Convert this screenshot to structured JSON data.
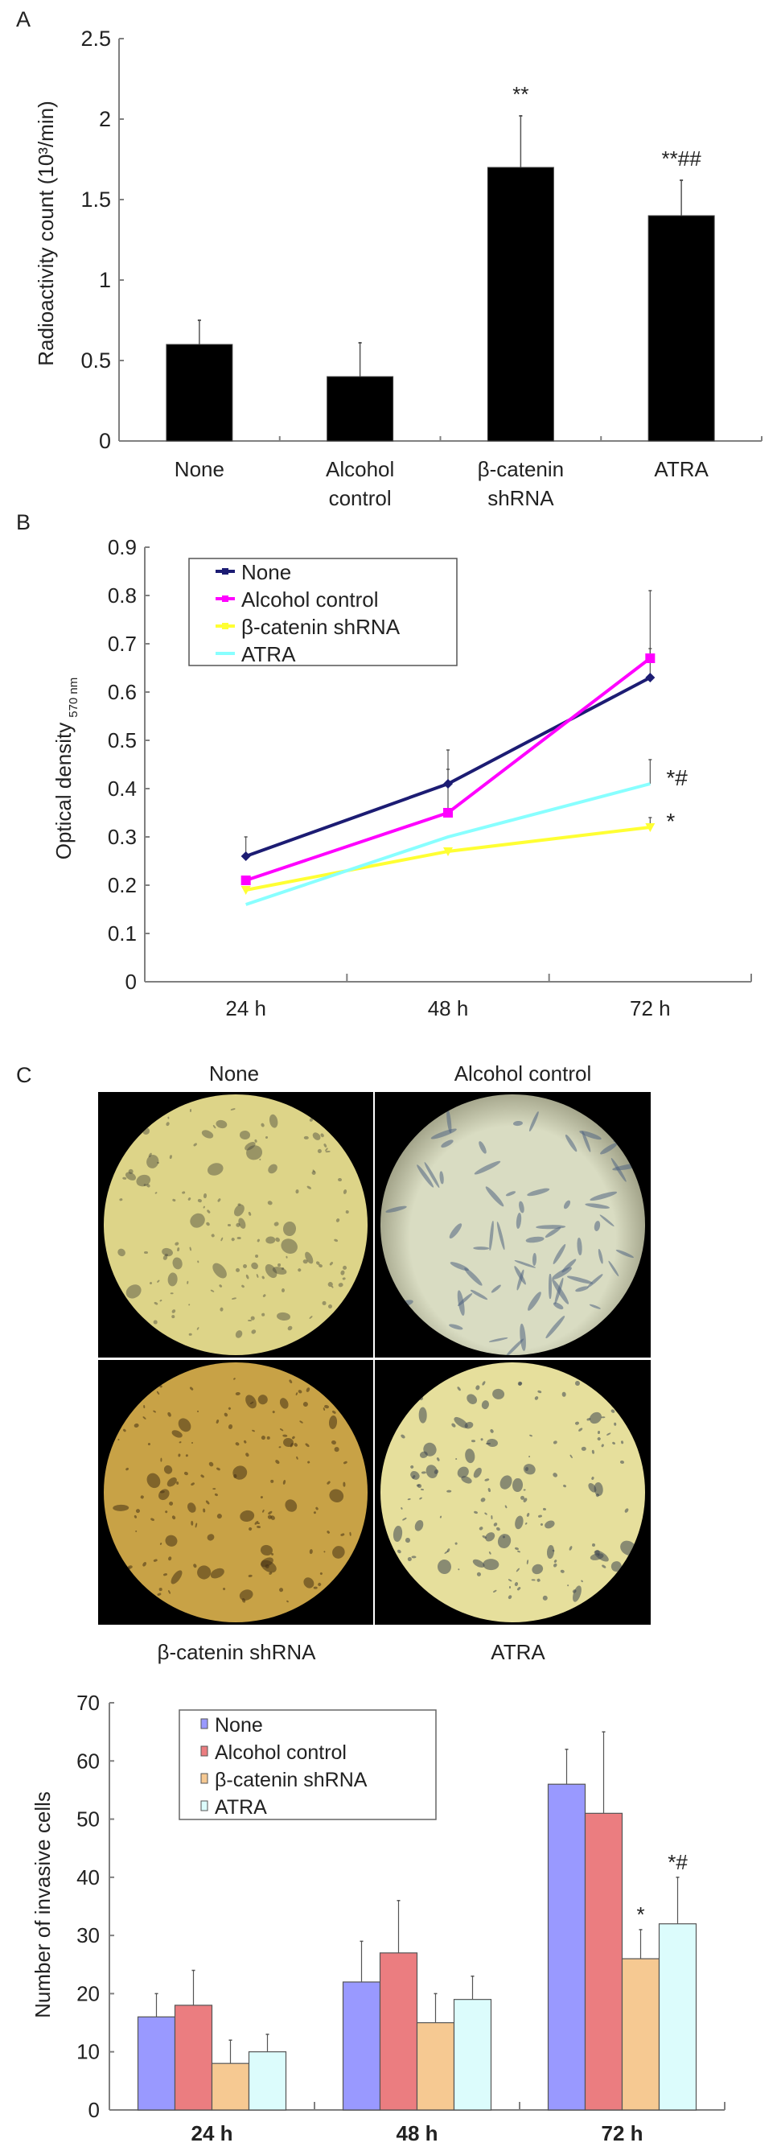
{
  "panel_labels": {
    "a": "A",
    "b": "B",
    "c": "C"
  },
  "colors": {
    "bar_a": "#000000",
    "axis": "#808080",
    "error_bar": "#555555",
    "annotation": "#555555"
  },
  "micrographs": {
    "labels": [
      "None",
      "Alcohol control",
      "β-catenin shRNA",
      "ATRA"
    ],
    "tints": [
      "#ddd488",
      "#d9dcc2",
      "#c8a246",
      "#e6df9c"
    ]
  },
  "chart_data": [
    {
      "type": "bar",
      "categories": [
        "None",
        "Alcohol control",
        "β-catenin shRNA",
        "ATRA"
      ],
      "values": [
        0.6,
        0.4,
        1.7,
        1.4
      ],
      "error_upper": [
        0.75,
        0.61,
        2.02,
        1.62
      ],
      "annotations": [
        "",
        "",
        "**",
        "**##"
      ],
      "xlabel": "",
      "ylabel": "Radioactivity count (10³/min)",
      "ylim": [
        0,
        2.5
      ],
      "yticks": [
        "0",
        "0.5",
        "1",
        "1.5",
        "2",
        "2.5"
      ],
      "grid": false
    },
    {
      "type": "line",
      "categories": [
        "24 h",
        "48 h",
        "72 h"
      ],
      "series": [
        {
          "name": "None",
          "values": [
            0.26,
            0.41,
            0.63
          ],
          "error_upper": [
            0.3,
            0.48,
            0.69
          ],
          "color": "#1c1c73",
          "marker": "diamond"
        },
        {
          "name": "Alcohol control",
          "values": [
            0.21,
            0.35,
            0.67
          ],
          "error_upper": [
            null,
            0.44,
            0.81
          ],
          "color": "#ff00ff",
          "marker": "square"
        },
        {
          "name": "β-catenin shRNA",
          "values": [
            0.19,
            0.27,
            0.32
          ],
          "error_upper": [
            null,
            null,
            0.34
          ],
          "color": "#ffff33",
          "marker": "triangle"
        },
        {
          "name": "ATRA",
          "values": [
            0.16,
            0.3,
            0.41
          ],
          "error_upper": [
            null,
            null,
            0.46
          ],
          "color": "#88ffff",
          "marker": "none"
        }
      ],
      "annotations": [
        {
          "series": "ATRA",
          "category": "72 h",
          "text": "*#"
        },
        {
          "series": "β-catenin shRNA",
          "category": "72 h",
          "text": "*"
        }
      ],
      "xlabel": "",
      "ylabel": "Optical density",
      "ylabel_subscript": "570 nm",
      "ylim": [
        0,
        0.9
      ],
      "yticks": [
        "0",
        "0.1",
        "0.2",
        "0.3",
        "0.4",
        "0.5",
        "0.6",
        "0.7",
        "0.8",
        "0.9"
      ],
      "legend": "top-left",
      "grid": false
    },
    {
      "type": "bar",
      "categories": [
        "24 h",
        "48 h",
        "72 h"
      ],
      "series": [
        {
          "name": "None",
          "values": [
            16,
            22,
            56
          ],
          "error_upper": [
            20,
            29,
            62
          ],
          "color": "#9999ff"
        },
        {
          "name": "Alcohol control",
          "values": [
            18,
            27,
            51
          ],
          "error_upper": [
            24,
            36,
            65
          ],
          "color": "#eb7d80"
        },
        {
          "name": "β-catenin shRNA",
          "values": [
            8,
            15,
            26
          ],
          "error_upper": [
            12,
            20,
            31
          ],
          "color": "#f6c992"
        },
        {
          "name": "ATRA",
          "values": [
            10,
            19,
            32
          ],
          "error_upper": [
            13,
            23,
            40
          ],
          "color": "#dcfcfc"
        }
      ],
      "annotations": [
        {
          "series": "β-catenin shRNA",
          "category": "72 h",
          "text": "*"
        },
        {
          "series": "ATRA",
          "category": "72 h",
          "text": "*#"
        }
      ],
      "xlabel": "",
      "ylabel": "Number of invasive cells",
      "ylim": [
        0,
        70
      ],
      "yticks": [
        "0",
        "10",
        "20",
        "30",
        "40",
        "50",
        "60",
        "70"
      ],
      "legend": "top-left",
      "grid": false
    }
  ]
}
